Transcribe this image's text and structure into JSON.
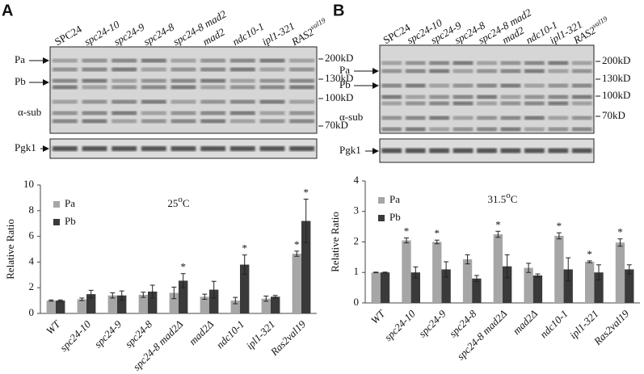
{
  "panels": [
    {
      "letter": "A",
      "lanes": [
        {
          "text": "SPC24",
          "italic": false
        },
        {
          "text": "spc24-10",
          "italic": true
        },
        {
          "text": "spc24-9",
          "italic": true
        },
        {
          "text": "spc24-8",
          "italic": true
        },
        {
          "text": "spc24-8 mad2",
          "italic": true
        },
        {
          "text": "mad2",
          "italic": true
        },
        {
          "text": "ndc10-1",
          "italic": true
        },
        {
          "text": "ipl1-321",
          "italic": true
        },
        {
          "text": "RAS2",
          "sup": "val19",
          "italic": true
        }
      ],
      "markers": [
        "200kD",
        "130kD",
        "100kD",
        "70kD"
      ],
      "bands": [
        "Pa",
        "Pb",
        "α-sub"
      ],
      "loading": "Pgk1"
    },
    {
      "letter": "B",
      "lanes": [
        {
          "text": "SPC24",
          "italic": false
        },
        {
          "text": "spc24-10",
          "italic": true
        },
        {
          "text": "spc24-9",
          "italic": true
        },
        {
          "text": "spc24-8",
          "italic": true
        },
        {
          "text": "spc24-8 mad2",
          "italic": true
        },
        {
          "text": "mad2",
          "italic": true
        },
        {
          "text": "ndc10-1",
          "italic": true
        },
        {
          "text": "ipl1-321",
          "italic": true
        },
        {
          "text": "RAS2",
          "sup": "val19",
          "italic": true
        }
      ],
      "markers": [
        "200kD",
        "130kD",
        "100kD",
        "70kD"
      ],
      "bands": [
        "Pa",
        "Pb",
        "α-sub"
      ],
      "loading": "Pgk1"
    }
  ],
  "chart_data": [
    {
      "type": "bar",
      "title": [
        "25",
        "o",
        "C"
      ],
      "y_label": "Relative Ratio",
      "legend": "upper left",
      "categories": [
        "WT",
        "spc24-10",
        "spc24-9",
        "spc24-8",
        "spc24-8 mad2Δ",
        "mad2Δ",
        "ndc10-1",
        "ipl1-321",
        "Ras2val19"
      ],
      "series": [
        {
          "name": "Pa",
          "color": "#a6a6a6",
          "values": [
            1.0,
            1.1,
            1.4,
            1.45,
            1.6,
            1.3,
            1.0,
            1.15,
            4.65
          ],
          "errors": [
            0.05,
            0.1,
            0.2,
            0.2,
            0.45,
            0.2,
            0.25,
            0.2,
            0.2
          ],
          "significance": [
            null,
            null,
            null,
            null,
            null,
            null,
            null,
            null,
            "*"
          ]
        },
        {
          "name": "Pb",
          "color": "#3a3a3a",
          "values": [
            1.0,
            1.5,
            1.4,
            1.7,
            2.55,
            1.85,
            3.8,
            1.3,
            7.2
          ],
          "errors": [
            0.05,
            0.3,
            0.35,
            0.5,
            0.55,
            0.65,
            0.75,
            0.1,
            1.7
          ],
          "significance": [
            null,
            null,
            null,
            null,
            "*",
            null,
            "*",
            null,
            "*"
          ]
        }
      ],
      "ylim": [
        0,
        10
      ],
      "yticks": [
        0,
        2,
        4,
        6,
        8,
        10
      ]
    },
    {
      "type": "bar",
      "title": [
        "31.5",
        "o",
        "C"
      ],
      "y_label": "Relative Ratio",
      "legend": "upper left",
      "categories": [
        "WT",
        "spc24-10",
        "spc24-9",
        "spc24-8",
        "spc24-8 mad2Δ",
        "mad2Δ",
        "ndc10-1",
        "ipl1-321",
        "Ras2val19"
      ],
      "series": [
        {
          "name": "Pa",
          "color": "#a6a6a6",
          "values": [
            1.0,
            2.05,
            2.0,
            1.43,
            2.25,
            1.15,
            2.2,
            1.35,
            1.98
          ],
          "errors": [
            0.01,
            0.08,
            0.06,
            0.15,
            0.1,
            0.15,
            0.1,
            0.03,
            0.12
          ],
          "significance": [
            null,
            "*",
            "*",
            null,
            "*",
            null,
            "*",
            "*",
            "*"
          ]
        },
        {
          "name": "Pb",
          "color": "#3a3a3a",
          "values": [
            1.0,
            1.0,
            1.1,
            0.8,
            1.2,
            0.9,
            1.1,
            1.0,
            1.1
          ],
          "errors": [
            0.01,
            0.18,
            0.25,
            0.1,
            0.38,
            0.05,
            0.38,
            0.25,
            0.15
          ],
          "significance": [
            null,
            null,
            null,
            null,
            null,
            null,
            null,
            null,
            null
          ]
        }
      ],
      "ylim": [
        0,
        4
      ],
      "yticks": [
        0,
        1,
        2,
        3,
        4
      ]
    }
  ]
}
